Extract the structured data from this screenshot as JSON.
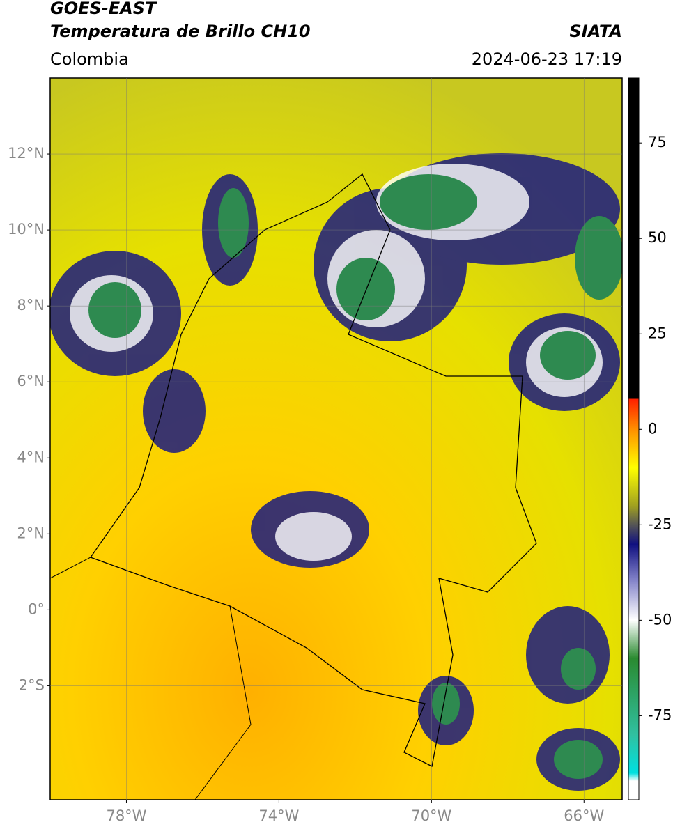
{
  "header": {
    "title": "GOES-EAST",
    "subtitle": "Temperatura de Brillo CH10",
    "region": "Colombia",
    "source": "SIATA",
    "datetime": "2024-06-23 17:19"
  },
  "map": {
    "lon_range": [
      -80,
      -65
    ],
    "lat_range": [
      -5,
      14
    ],
    "lon_ticks": [
      {
        "value": -78,
        "label": "78°W"
      },
      {
        "value": -74,
        "label": "74°W"
      },
      {
        "value": -70,
        "label": "70°W"
      },
      {
        "value": -66,
        "label": "66°W"
      }
    ],
    "lat_ticks": [
      {
        "value": 12,
        "label": "12°N"
      },
      {
        "value": 10,
        "label": "10°N"
      },
      {
        "value": 8,
        "label": "8°N"
      },
      {
        "value": 6,
        "label": "6°N"
      },
      {
        "value": 4,
        "label": "4°N"
      },
      {
        "value": 2,
        "label": "2°N"
      },
      {
        "value": 0,
        "label": "0°"
      },
      {
        "value": -2,
        "label": "2°S"
      }
    ]
  },
  "colorbar": {
    "range": [
      -97,
      92
    ],
    "ticks": [
      75,
      50,
      25,
      0,
      -25,
      -50,
      -75
    ]
  }
}
